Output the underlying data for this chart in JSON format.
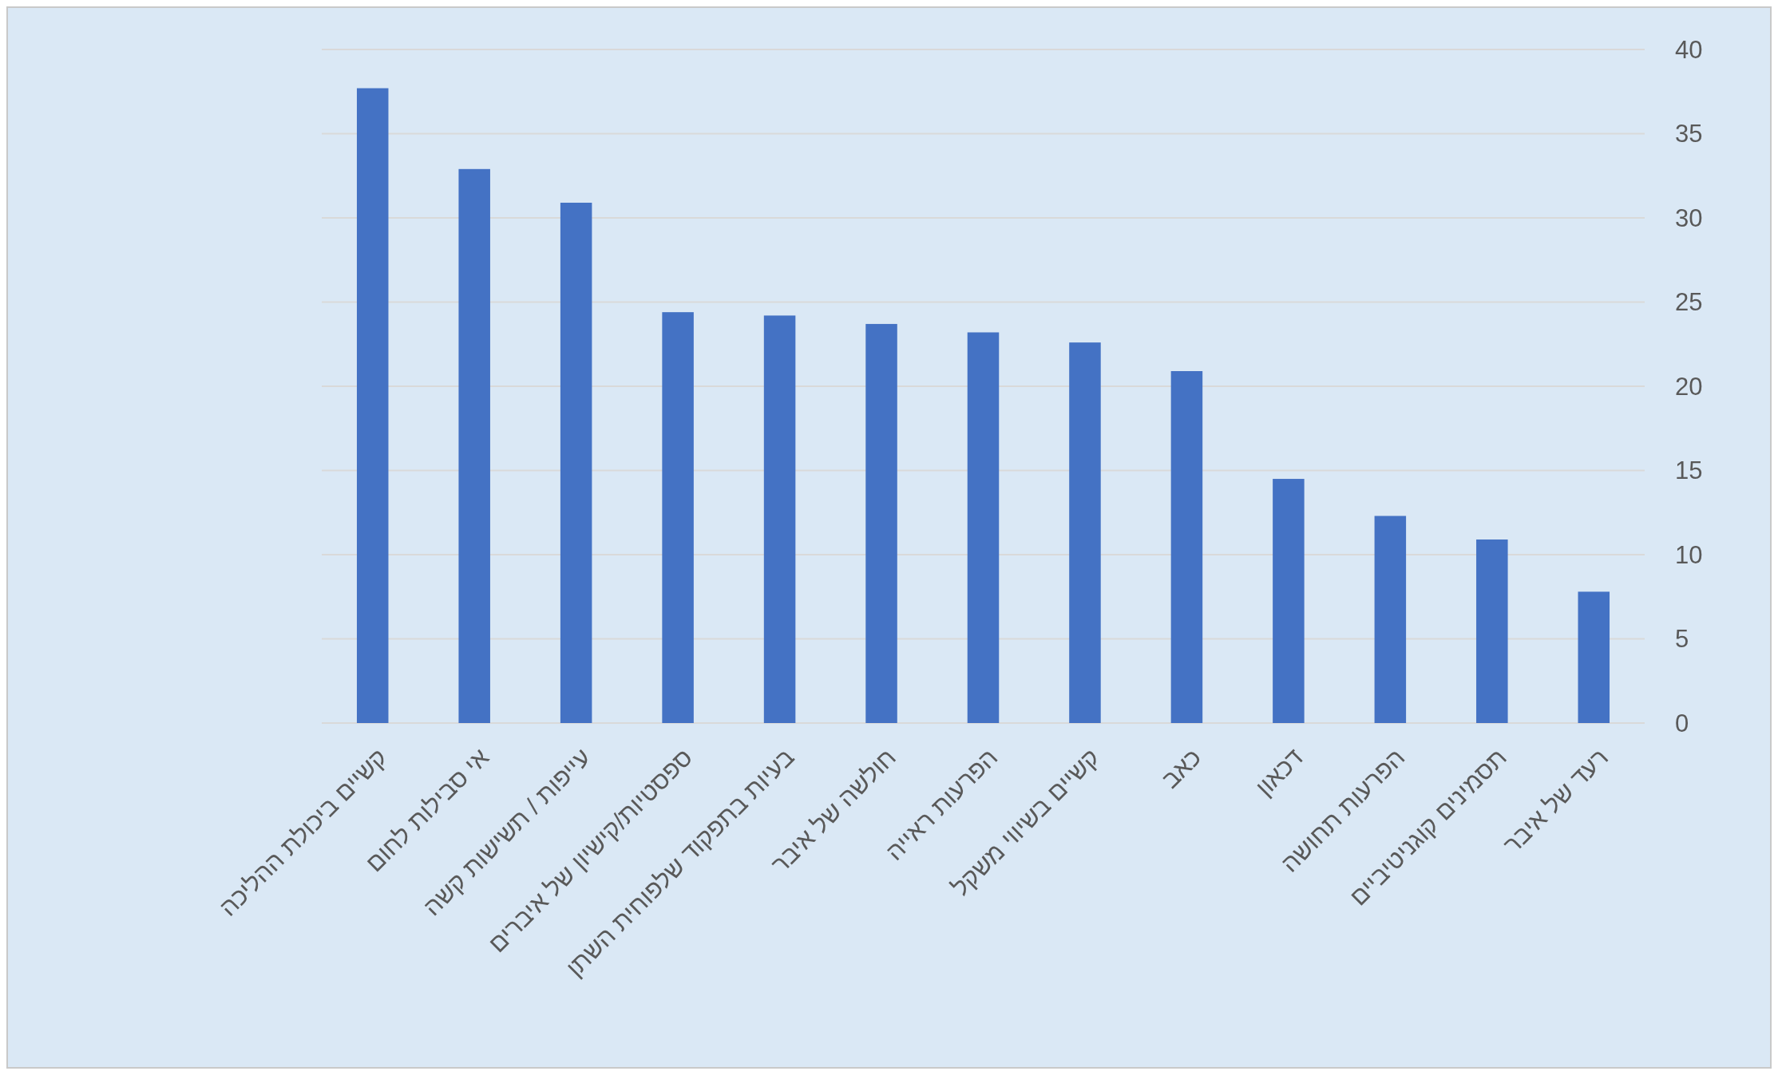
{
  "chart_data": {
    "type": "bar",
    "categories": [
      "קשיים ביכולת ההליכה",
      "אי סבילות לחום",
      "עייפות / תשישות קשה",
      "ספסטיות/קישיון של איברים",
      "בעיות בתפקוד שלפוחית השתן",
      "חולשה של איבר",
      "הפרעות ראייה",
      "קשיים בשיווי משקל",
      "כאב",
      "דכאון",
      "הפרעות תחושה",
      "תסמינים קוגניטיביים",
      "רעד של איבר"
    ],
    "values": [
      37.7,
      32.9,
      30.9,
      24.4,
      24.2,
      23.7,
      23.2,
      22.6,
      20.9,
      14.5,
      12.3,
      10.9,
      7.8
    ],
    "color": "#4472c4",
    "ylim": [
      0,
      40
    ],
    "yticks": [
      0,
      5,
      10,
      15,
      20,
      25,
      30,
      35,
      40
    ],
    "grid": "y"
  }
}
